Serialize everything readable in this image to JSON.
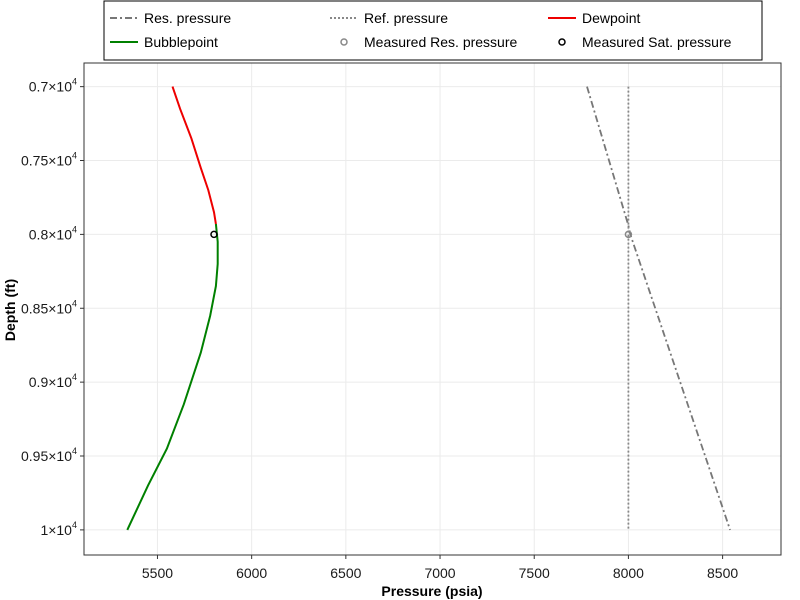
{
  "chart_data": {
    "type": "line",
    "xlabel": "Pressure (psia)",
    "ylabel": "Depth (ft)",
    "xlim": [
      5110,
      8810
    ],
    "ylim": [
      10170,
      6840
    ],
    "y_reversed": true,
    "grid": true,
    "legend_position": "top",
    "x_ticks": [
      {
        "value": 5500,
        "label": "5500"
      },
      {
        "value": 6000,
        "label": "6000"
      },
      {
        "value": 6500,
        "label": "6500"
      },
      {
        "value": 7000,
        "label": "7000"
      },
      {
        "value": 7500,
        "label": "7500"
      },
      {
        "value": 8000,
        "label": "8000"
      },
      {
        "value": 8500,
        "label": "8500"
      }
    ],
    "y_ticks": [
      {
        "value": 7000,
        "label": "0.7×10",
        "exp": "4"
      },
      {
        "value": 7500,
        "label": "0.75×10",
        "exp": "4"
      },
      {
        "value": 8000,
        "label": "0.8×10",
        "exp": "4"
      },
      {
        "value": 8500,
        "label": "0.85×10",
        "exp": "4"
      },
      {
        "value": 9000,
        "label": "0.9×10",
        "exp": "4"
      },
      {
        "value": 9500,
        "label": "0.95×10",
        "exp": "4"
      },
      {
        "value": 10000,
        "label": "1×10",
        "exp": "4"
      }
    ],
    "series": [
      {
        "name": "Res. pressure",
        "color": "#777777",
        "dash": "dashdot",
        "points": [
          [
            7780,
            7000
          ],
          [
            8000,
            7940
          ],
          [
            8010,
            8000
          ],
          [
            8540,
            10000
          ]
        ]
      },
      {
        "name": "Ref. pressure",
        "color": "#888888",
        "dash": "dotted",
        "points": [
          [
            8000,
            7000
          ],
          [
            8000,
            10000
          ]
        ]
      },
      {
        "name": "Dewpoint",
        "color": "#ee0000",
        "dash": "solid",
        "points": [
          [
            5580,
            7000
          ],
          [
            5620,
            7150
          ],
          [
            5680,
            7350
          ],
          [
            5730,
            7550
          ],
          [
            5770,
            7700
          ],
          [
            5800,
            7850
          ],
          [
            5810,
            7930
          ]
        ]
      },
      {
        "name": "Bubblepoint",
        "color": "#008000",
        "dash": "solid",
        "points": [
          [
            5810,
            7930
          ],
          [
            5820,
            8050
          ],
          [
            5820,
            8200
          ],
          [
            5810,
            8350
          ],
          [
            5780,
            8550
          ],
          [
            5730,
            8800
          ],
          [
            5640,
            9150
          ],
          [
            5550,
            9450
          ],
          [
            5450,
            9700
          ],
          [
            5340,
            10000
          ]
        ]
      }
    ],
    "markers": [
      {
        "name": "Measured Res. pressure",
        "color": "#888888",
        "points": [
          [
            8000,
            8000
          ]
        ]
      },
      {
        "name": "Measured Sat. pressure",
        "color": "#000000",
        "points": [
          [
            5800,
            8000
          ]
        ]
      }
    ],
    "legend": [
      {
        "label": "Res. pressure",
        "kind": "line",
        "color": "#777777",
        "dash": "dashdot"
      },
      {
        "label": "Ref. pressure",
        "kind": "line",
        "color": "#888888",
        "dash": "dotted"
      },
      {
        "label": "Dewpoint",
        "kind": "line",
        "color": "#ee0000",
        "dash": "solid"
      },
      {
        "label": "Bubblepoint",
        "kind": "line",
        "color": "#008000",
        "dash": "solid"
      },
      {
        "label": "Measured Res. pressure",
        "kind": "marker",
        "color": "#888888"
      },
      {
        "label": "Measured Sat. pressure",
        "kind": "marker",
        "color": "#000000"
      }
    ]
  }
}
